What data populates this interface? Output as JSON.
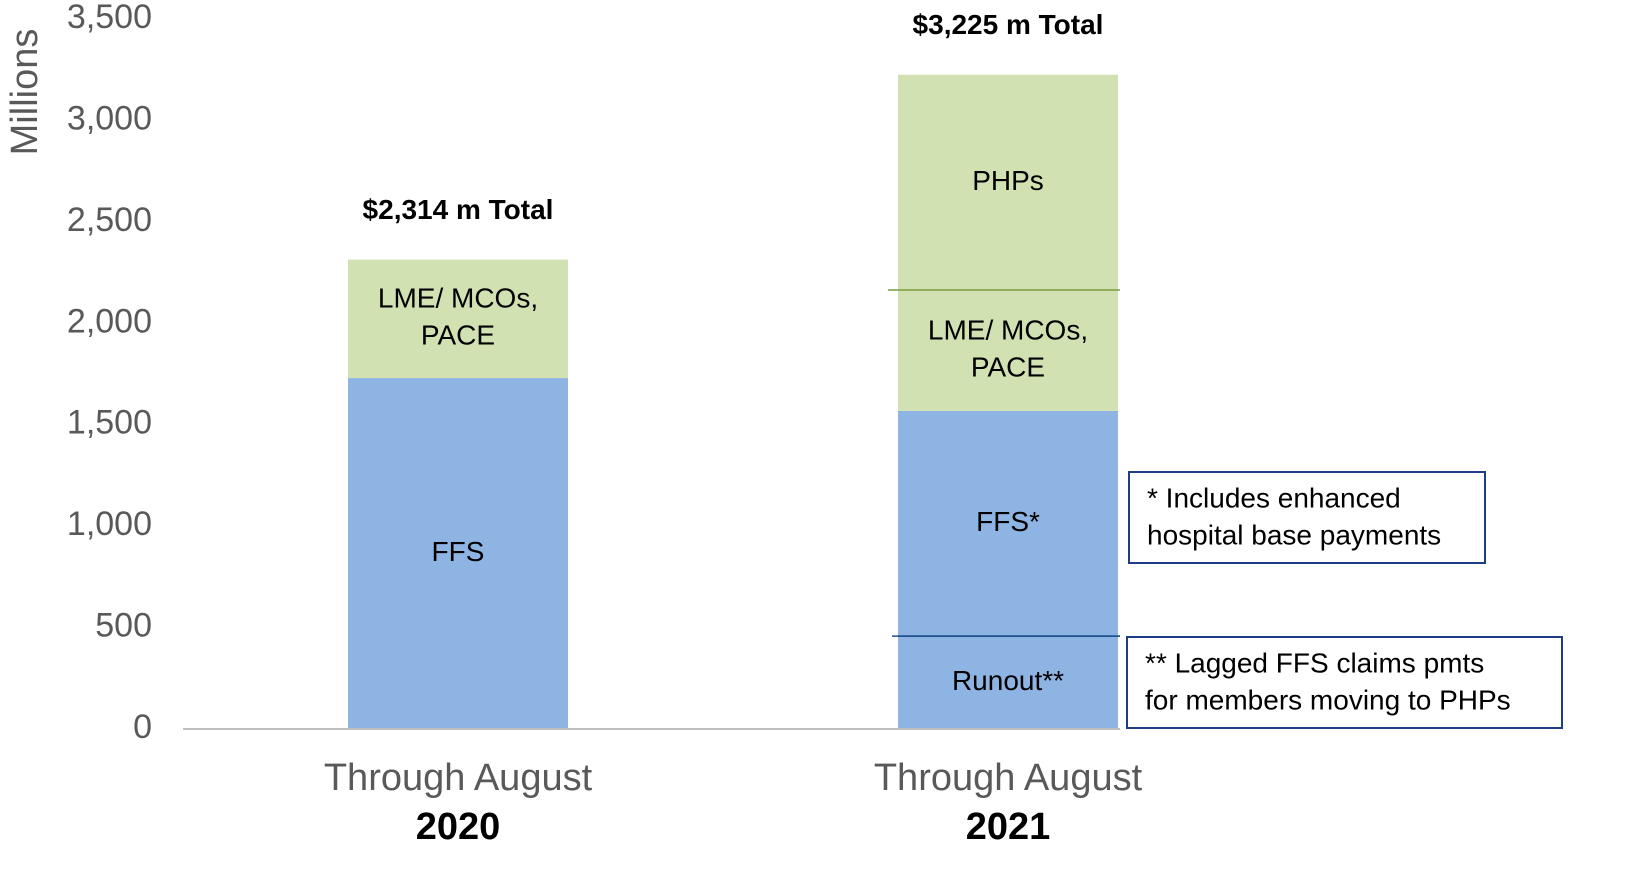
{
  "chart_data": {
    "type": "stacked_bar",
    "y_label": "Millions",
    "categories": [
      [
        "Through August",
        "2020"
      ],
      [
        "Through August",
        "2021"
      ]
    ],
    "series": [
      {
        "name": "Runout",
        "color": "#8eb4e3",
        "values": [
          null,
          458
        ],
        "segment_labels": [
          null,
          [
            "Runout**"
          ]
        ]
      },
      {
        "name": "FFS",
        "color": "#8eb4e3",
        "values": [
          1730,
          1110
        ],
        "segment_labels": [
          [
            "FFS"
          ],
          [
            "FFS*"
          ]
        ]
      },
      {
        "name": "LME/ MCOs, PACE",
        "color": "#d2e1b1",
        "values": [
          584,
          596
        ],
        "segment_labels": [
          [
            "LME/ MCOs,",
            "PACE"
          ],
          [
            "LME/ MCOs,",
            "PACE"
          ]
        ]
      },
      {
        "name": "PHPs",
        "color": "#d2e1b1",
        "values": [
          null,
          1061
        ],
        "segment_labels": [
          null,
          [
            "PHPs"
          ]
        ]
      }
    ],
    "totals": [
      {
        "value": 2314,
        "label": "$2,314 m Total"
      },
      {
        "value": 3225,
        "label": "$3,225 m Total"
      }
    ],
    "notes": [
      [
        "* Includes enhanced",
        "hospital base payments"
      ],
      [
        "** Lagged FFS claims pmts",
        "for members moving to PHPs"
      ]
    ],
    "ylim": [
      0,
      3500
    ],
    "yticks": [
      0,
      {
        "value": 500,
        "label": "500"
      },
      {
        "value": 1000,
        "label": "1,000"
      },
      {
        "value": 1500,
        "label": "1,500"
      },
      {
        "value": 2000,
        "label": "2,000"
      },
      {
        "value": 2500,
        "label": "2,500"
      },
      {
        "value": 3000,
        "label": "3,000"
      },
      {
        "value": 3500,
        "label": "3,500"
      }
    ],
    "grid": false
  }
}
